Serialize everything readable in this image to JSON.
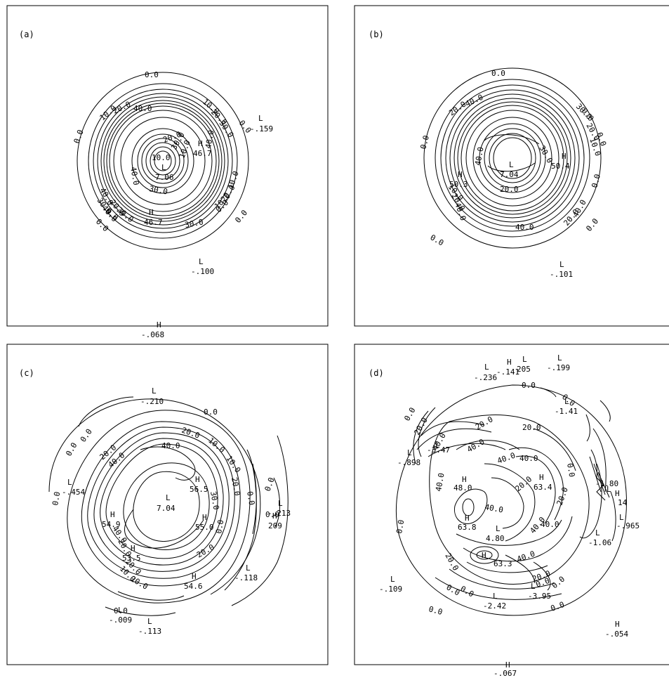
{
  "panels": [
    {
      "id": "a",
      "label": "(a)",
      "labels": [
        {
          "text": "0.0"
        },
        {
          "text": "0.0"
        },
        {
          "text": "0.0"
        },
        {
          "text": "0.0"
        },
        {
          "text": "0.0"
        },
        {
          "text": "0.0"
        },
        {
          "text": "0.0"
        },
        {
          "text": "10.0"
        },
        {
          "text": "20.0"
        },
        {
          "text": "40.0"
        },
        {
          "text": "10.0"
        },
        {
          "text": "20.0"
        },
        {
          "text": "30.0"
        },
        {
          "text": "20.0"
        },
        {
          "text": "10.0"
        },
        {
          "text": "40.0"
        },
        {
          "text": "30.0"
        },
        {
          "text": "10.0"
        },
        {
          "text": "30.0"
        },
        {
          "text": "40.0"
        },
        {
          "text": "30.0"
        },
        {
          "text": "40.0"
        },
        {
          "text": "10.0"
        },
        {
          "text": "20.0"
        },
        {
          "text": "30.0"
        },
        {
          "text": "40.0"
        },
        {
          "text": "30.0"
        },
        {
          "text": "20.0"
        },
        {
          "text": "10.0"
        }
      ],
      "extrema": [
        {
          "type": "L",
          "value": "-.159"
        },
        {
          "type": "H",
          "value": "46.7"
        },
        {
          "type": "L",
          "value": "7.06"
        },
        {
          "type": "H",
          "value": "46.7"
        },
        {
          "type": "L",
          "value": "-.100"
        }
      ]
    },
    {
      "id": "b",
      "label": "(b)",
      "labels": [
        {
          "text": "0.0"
        },
        {
          "text": "0.0"
        },
        {
          "text": "0.0"
        },
        {
          "text": "0.0"
        },
        {
          "text": "0.0"
        },
        {
          "text": "0.0"
        },
        {
          "text": "0.0"
        },
        {
          "text": "20.0"
        },
        {
          "text": "40.0"
        },
        {
          "text": "30.0"
        },
        {
          "text": "20.0"
        },
        {
          "text": "10.0"
        },
        {
          "text": "40.0"
        },
        {
          "text": "30.0"
        },
        {
          "text": "40.0"
        },
        {
          "text": "20.0"
        },
        {
          "text": "10.0"
        },
        {
          "text": "20.0"
        },
        {
          "text": "40.0"
        },
        {
          "text": "40.0"
        },
        {
          "text": "20.0"
        }
      ],
      "extrema": [
        {
          "type": "L",
          "value": "7.04"
        },
        {
          "type": "H",
          "value": "50.4"
        },
        {
          "type": "H",
          "value": "50.3"
        },
        {
          "type": "L",
          "value": "-.101"
        }
      ]
    },
    {
      "id": "c",
      "label": "(c)",
      "labels": [
        {
          "text": "0.0"
        },
        {
          "text": "0.0"
        },
        {
          "text": "0.0"
        },
        {
          "text": "0.0"
        },
        {
          "text": "0.0"
        },
        {
          "text": "0.0"
        },
        {
          "text": "0.0"
        },
        {
          "text": "20.0"
        },
        {
          "text": "10.0"
        },
        {
          "text": "40.0"
        },
        {
          "text": "20.0"
        },
        {
          "text": "40.0"
        },
        {
          "text": "20.0"
        },
        {
          "text": "40.0"
        },
        {
          "text": "20.0"
        },
        {
          "text": "10.0"
        },
        {
          "text": "20.0"
        },
        {
          "text": "30.0"
        },
        {
          "text": "20.0"
        },
        {
          "text": "10.0"
        },
        {
          "text": "20.0"
        },
        {
          "text": "0.0"
        },
        {
          "text": "0.0"
        }
      ],
      "extrema": [
        {
          "type": "L",
          "value": "-.210"
        },
        {
          "type": "L",
          "value": "-.454"
        },
        {
          "type": "L",
          "value": "7.04"
        },
        {
          "type": "H",
          "value": "56.5"
        },
        {
          "type": "H",
          "value": "54.9"
        },
        {
          "type": "H",
          "value": "55.0"
        },
        {
          "type": "H",
          "value": "53.5"
        },
        {
          "type": "H",
          "value": "54.6"
        },
        {
          "type": "L",
          "value": "-.213"
        },
        {
          "type": "H",
          "value": "209"
        },
        {
          "type": "L",
          "value": "-.118"
        },
        {
          "type": "L",
          "value": "-.009"
        },
        {
          "type": "L",
          "value": "-.113"
        }
      ]
    },
    {
      "id": "d",
      "label": "(d)",
      "labels": [
        {
          "text": "0.0"
        },
        {
          "text": "0.0"
        },
        {
          "text": "0.0"
        },
        {
          "text": "0.0"
        },
        {
          "text": "0.0"
        },
        {
          "text": "0.0"
        },
        {
          "text": "0.0"
        },
        {
          "text": "0.0"
        },
        {
          "text": "20.0"
        },
        {
          "text": "40.0"
        },
        {
          "text": "40.0"
        },
        {
          "text": "40.0"
        },
        {
          "text": "20.0"
        },
        {
          "text": "40.0"
        },
        {
          "text": "20.0"
        },
        {
          "text": "40.0"
        },
        {
          "text": "20.0"
        },
        {
          "text": "40.0"
        },
        {
          "text": "20.0"
        },
        {
          "text": "40.0"
        },
        {
          "text": "20.0"
        },
        {
          "text": "20.0"
        },
        {
          "text": "40.0"
        },
        {
          "text": "40.0"
        },
        {
          "text": "0.0"
        },
        {
          "text": "0.0"
        },
        {
          "text": "0.0"
        }
      ],
      "extrema": [
        {
          "type": "L",
          "value": "-.236"
        },
        {
          "type": "H",
          "value": "-.141"
        },
        {
          "type": "L",
          "value": "205"
        },
        {
          "type": "L",
          "value": "-.199"
        },
        {
          "type": "L",
          "value": "-1.41"
        },
        {
          "type": "L",
          "value": "-3.47"
        },
        {
          "type": "L",
          "value": "-.898"
        },
        {
          "type": "H",
          "value": "48.0"
        },
        {
          "type": "H",
          "value": "63.4"
        },
        {
          "type": "H",
          "value": "63.8"
        },
        {
          "type": "L",
          "value": "4.80"
        },
        {
          "type": "H",
          "value": "63.3"
        },
        {
          "type": "L",
          "value": "-1.80"
        },
        {
          "type": "H",
          "value": "14"
        },
        {
          "type": "L",
          "value": "-.965"
        },
        {
          "type": "L",
          "value": "-1.06"
        },
        {
          "type": "L",
          "value": "-.109"
        },
        {
          "type": "L",
          "value": "-3.95"
        },
        {
          "type": "L",
          "value": "-2.42"
        },
        {
          "type": "H",
          "value": "-.054"
        }
      ]
    }
  ],
  "outside": [
    {
      "type": "H",
      "value": "-.068"
    },
    {
      "type": "H",
      "value": "-.067"
    }
  ]
}
